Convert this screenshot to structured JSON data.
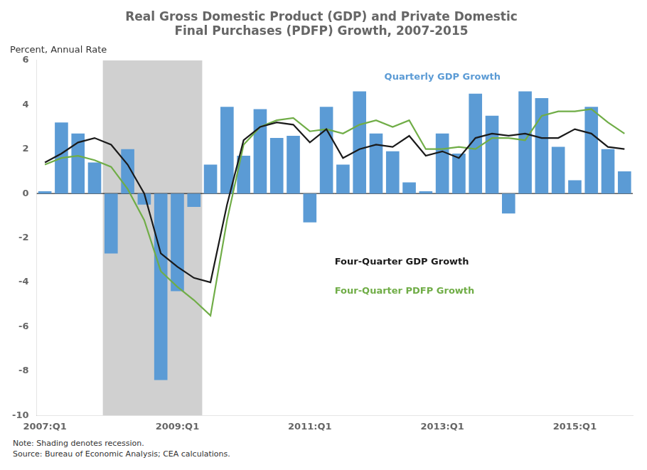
{
  "chart_data": {
    "type": "bar",
    "title": [
      "Real Gross Domestic Product (GDP) and Private Domestic",
      "Final Purchases (PDFP) Growth, 2007-2015"
    ],
    "ylabel": "Percent, Annual Rate",
    "notes": [
      "Note: Shading denotes recession.",
      "Source: Bureau of Economic Analysis; CEA calculations."
    ],
    "categories": [
      "2007:Q1",
      null,
      null,
      null,
      null,
      null,
      null,
      null,
      "2009:Q1",
      null,
      null,
      null,
      null,
      null,
      null,
      null,
      "2011:Q1",
      null,
      null,
      null,
      null,
      null,
      null,
      null,
      "2013:Q1",
      null,
      null,
      null,
      null,
      null,
      null,
      null,
      "2015:Q1",
      null,
      null,
      null
    ],
    "series": [
      {
        "name": "Quarterly GDP Growth",
        "type": "bar",
        "color": "#5b9bd5",
        "values": [
          0.1,
          3.2,
          2.7,
          1.4,
          -2.7,
          2.0,
          -0.5,
          -8.4,
          -4.4,
          -0.6,
          1.3,
          3.9,
          1.7,
          3.8,
          2.5,
          2.6,
          -1.3,
          3.9,
          1.3,
          4.6,
          2.7,
          1.9,
          0.5,
          0.1,
          2.7,
          1.8,
          4.5,
          3.5,
          -0.9,
          4.6,
          4.3,
          2.1,
          0.6,
          3.9,
          2.0,
          1.0
        ]
      },
      {
        "name": "Four-Quarter GDP Growth",
        "type": "line",
        "color": "#1a1a1a",
        "values": [
          1.4,
          1.8,
          2.3,
          2.5,
          2.2,
          1.3,
          0.0,
          -2.7,
          -3.3,
          -3.8,
          -4.0,
          -0.5,
          2.4,
          3.0,
          3.2,
          3.1,
          2.3,
          2.9,
          1.6,
          2.0,
          2.2,
          2.1,
          2.6,
          1.7,
          1.9,
          1.6,
          2.5,
          2.7,
          2.6,
          2.7,
          2.5,
          2.5,
          2.9,
          2.7,
          2.1,
          2.0
        ]
      },
      {
        "name": "Four-Quarter PDFP Growth",
        "type": "line",
        "color": "#70ad47",
        "values": [
          1.3,
          1.6,
          1.7,
          1.5,
          1.2,
          0.2,
          -1.2,
          -3.5,
          -4.2,
          -4.8,
          -5.5,
          -1.2,
          2.2,
          3.0,
          3.3,
          3.4,
          2.8,
          2.9,
          2.7,
          3.1,
          3.3,
          3.0,
          3.3,
          2.0,
          2.0,
          2.1,
          2.0,
          2.5,
          2.5,
          2.4,
          3.5,
          3.7,
          3.7,
          3.8,
          3.2,
          2.7
        ]
      }
    ],
    "ylim": [
      -10,
      6
    ],
    "yticks": [
      -10,
      -8,
      -6,
      -4,
      -2,
      0,
      2,
      4,
      6
    ],
    "grid": false,
    "shaded_spans": [
      {
        "from": 3.5,
        "to": 9.5,
        "color": "#d0d0d0"
      }
    ],
    "reference_lines": [
      {
        "y": 0,
        "color": "#000000"
      }
    ],
    "annotations": [
      {
        "text": "Quarterly GDP Growth",
        "x": 20.5,
        "y": 5.25,
        "color": "#5b9bd5"
      },
      {
        "text": "Four-Quarter GDP Growth",
        "x": 17.5,
        "y": -3.1,
        "color": "#1a1a1a"
      },
      {
        "text": "Four-Quarter PDFP Growth",
        "x": 17.5,
        "y": -4.4,
        "color": "#70ad47"
      }
    ]
  }
}
